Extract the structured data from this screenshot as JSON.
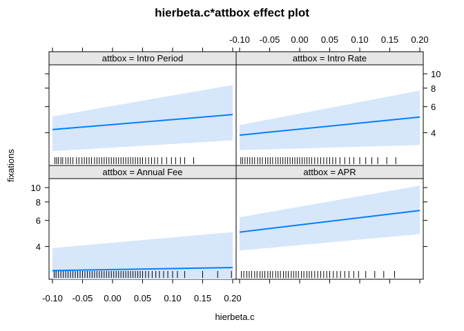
{
  "title": "hierbeta.c*attbox effect plot",
  "chart_data": {
    "type": "line",
    "title": "hierbeta.c*attbox effect plot",
    "xlabel": "hierbeta.c",
    "ylabel": "fixations",
    "xlim": [
      -0.1,
      0.2
    ],
    "x_ticks": [
      "-0.10",
      "-0.05",
      "0.00",
      "0.05",
      "0.10",
      "0.15",
      "0.20"
    ],
    "y_scale": "log",
    "ylim": [
      2.4,
      11.5
    ],
    "y_ticks": [
      "4",
      "6",
      "8",
      "10"
    ],
    "grid": false,
    "legend": "none",
    "band_color": "#d6e6fb",
    "line_color": "#0080ff",
    "panels": [
      {
        "label": "attbox = Intro Period",
        "x": [
          -0.1,
          0.2
        ],
        "fit": [
          4.2,
          5.3
        ],
        "lower": [
          3.0,
          3.55
        ],
        "upper": [
          5.15,
          8.4
        ],
        "rug": [
          -0.096,
          -0.093,
          -0.09,
          -0.086,
          -0.083,
          -0.078,
          -0.074,
          -0.07,
          -0.066,
          -0.06,
          -0.056,
          -0.051,
          -0.047,
          -0.043,
          -0.039,
          -0.035,
          -0.03,
          -0.026,
          -0.022,
          -0.018,
          -0.014,
          -0.01,
          -0.006,
          -0.002,
          0.002,
          0.006,
          0.01,
          0.014,
          0.018,
          0.022,
          0.026,
          0.03,
          0.034,
          0.038,
          0.042,
          0.046,
          0.05,
          0.055,
          0.06,
          0.065,
          0.07,
          0.075,
          0.082,
          0.09,
          0.098,
          0.105,
          0.113,
          0.12,
          0.135
        ]
      },
      {
        "label": "attbox = Intro Rate",
        "x": [
          -0.1,
          0.2
        ],
        "fit": [
          3.85,
          5.1
        ],
        "lower": [
          3.05,
          3.3
        ],
        "upper": [
          4.5,
          7.7
        ],
        "rug": [
          -0.098,
          -0.095,
          -0.091,
          -0.087,
          -0.083,
          -0.079,
          -0.075,
          -0.07,
          -0.066,
          -0.062,
          -0.057,
          -0.053,
          -0.049,
          -0.045,
          -0.04,
          -0.036,
          -0.032,
          -0.028,
          -0.024,
          -0.02,
          -0.016,
          -0.012,
          -0.008,
          -0.004,
          0.0,
          0.004,
          0.008,
          0.012,
          0.016,
          0.02,
          0.025,
          0.03,
          0.035,
          0.04,
          0.045,
          0.05,
          0.055,
          0.06,
          0.067,
          0.075,
          0.083,
          0.09,
          0.1,
          0.11,
          0.12,
          0.13,
          0.145,
          0.16
        ]
      },
      {
        "label": "attbox = Annual Fee",
        "x": [
          -0.1,
          0.2
        ],
        "fit": [
          2.75,
          2.88
        ],
        "lower": [
          1.95,
          1.6
        ],
        "upper": [
          3.9,
          5.0
        ],
        "rug": [
          -0.097,
          -0.094,
          -0.09,
          -0.086,
          -0.082,
          -0.078,
          -0.074,
          -0.07,
          -0.066,
          -0.062,
          -0.058,
          -0.054,
          -0.05,
          -0.046,
          -0.042,
          -0.038,
          -0.034,
          -0.03,
          -0.026,
          -0.022,
          -0.018,
          -0.014,
          -0.01,
          -0.006,
          -0.002,
          0.002,
          0.006,
          0.01,
          0.014,
          0.018,
          0.022,
          0.026,
          0.03,
          0.034,
          0.038,
          0.042,
          0.046,
          0.05,
          0.055,
          0.06,
          0.066,
          0.072,
          0.078,
          0.085,
          0.092,
          0.1,
          0.108,
          0.12,
          0.15,
          0.175,
          0.198
        ]
      },
      {
        "label": "attbox = APR",
        "x": [
          -0.1,
          0.2
        ],
        "fit": [
          5.0,
          7.0
        ],
        "lower": [
          3.75,
          4.85
        ],
        "upper": [
          6.3,
          10.3
        ],
        "rug": [
          -0.097,
          -0.093,
          -0.088,
          -0.084,
          -0.08,
          -0.075,
          -0.071,
          -0.066,
          -0.062,
          -0.058,
          -0.053,
          -0.049,
          -0.045,
          -0.04,
          -0.036,
          -0.032,
          -0.027,
          -0.023,
          -0.019,
          -0.014,
          -0.01,
          -0.006,
          -0.002,
          0.003,
          0.007,
          0.012,
          0.016,
          0.02,
          0.025,
          0.03,
          0.035,
          0.04,
          0.045,
          0.05,
          0.056,
          0.062,
          0.068,
          0.075,
          0.082,
          0.09,
          0.098,
          0.11,
          0.125,
          0.14,
          0.158
        ]
      }
    ]
  }
}
